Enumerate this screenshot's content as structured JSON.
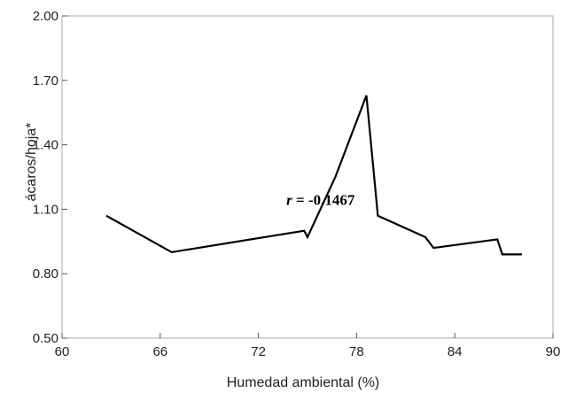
{
  "chart_data": {
    "type": "line",
    "title": "",
    "xlabel": "Humedad ambiental (%)",
    "ylabel": "ácaros/hoja*",
    "xlim": [
      60,
      90
    ],
    "ylim": [
      0.5,
      2.0
    ],
    "x_ticks": [
      60,
      66,
      72,
      78,
      84,
      90
    ],
    "x_tick_labels": [
      "60",
      "66",
      "72",
      "78",
      "84",
      "90"
    ],
    "y_ticks": [
      0.5,
      0.8,
      1.1,
      1.4,
      1.7,
      2.0
    ],
    "y_tick_labels": [
      "0.50",
      "0.80",
      "1.10",
      "1.40",
      "1.70",
      "2.00"
    ],
    "grid": false,
    "series": [
      {
        "x": [
          62.7,
          66.7,
          74.8,
          75.0,
          76.7,
          78.6,
          79.3,
          82.2,
          82.7,
          86.6,
          86.9,
          88.1
        ],
        "y": [
          1.07,
          0.9,
          1.0,
          0.97,
          1.25,
          1.63,
          1.07,
          0.97,
          0.92,
          0.96,
          0.89,
          0.89
        ]
      }
    ],
    "annotation": {
      "variable": "r",
      "value_text": " = -0.1467",
      "x": 75.8,
      "y": 1.12
    },
    "line_color": "#000000"
  }
}
